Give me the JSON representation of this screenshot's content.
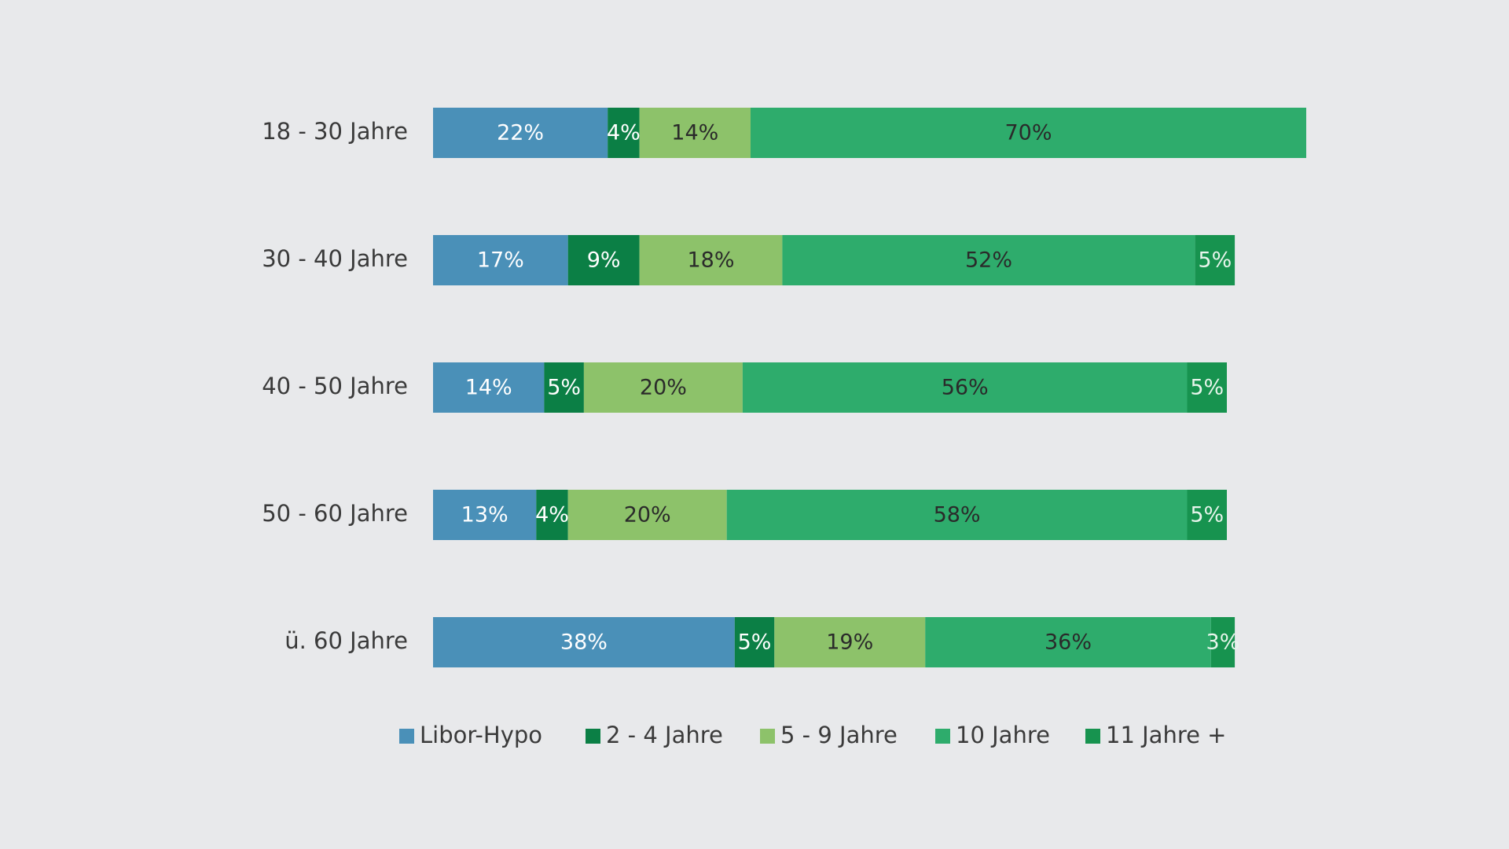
{
  "chart_data": {
    "type": "stacked-bar",
    "orientation": "horizontal",
    "categories": [
      "18 - 30 Jahre",
      "30 - 40 Jahre",
      "40 - 50 Jahre",
      "50 - 60 Jahre",
      "ü. 60 Jahre"
    ],
    "xlim": [
      0,
      110
    ],
    "series": [
      {
        "name": "Libor-Hypo",
        "color": "#4a90b8",
        "values": [
          22,
          17,
          14,
          13,
          38
        ],
        "value_labels": [
          "22%",
          "17%",
          "14%",
          "13%",
          "38%"
        ]
      },
      {
        "name": "2 - 4 Jahre",
        "color": "#0b7f45",
        "values": [
          4,
          9,
          5,
          4,
          5
        ],
        "value_labels": [
          "4%",
          "9%",
          "5%",
          "4%",
          "5%"
        ]
      },
      {
        "name": "5 - 9 Jahre",
        "color": "#8dc26a",
        "values": [
          14,
          18,
          20,
          20,
          19
        ],
        "value_labels": [
          "14%",
          "18%",
          "20%",
          "20%",
          "19%"
        ]
      },
      {
        "name": "10 Jahre",
        "color": "#2eac6c",
        "values": [
          70,
          52,
          56,
          58,
          36
        ],
        "value_labels": [
          "70%",
          "52%",
          "56%",
          "58%",
          "36%"
        ]
      },
      {
        "name": "11 Jahre +",
        "color": "#17934f",
        "values": [
          null,
          5,
          5,
          5,
          3
        ],
        "value_labels": [
          null,
          "5%",
          "5%",
          "5%",
          "3%"
        ]
      }
    ],
    "legend": "bottom"
  }
}
